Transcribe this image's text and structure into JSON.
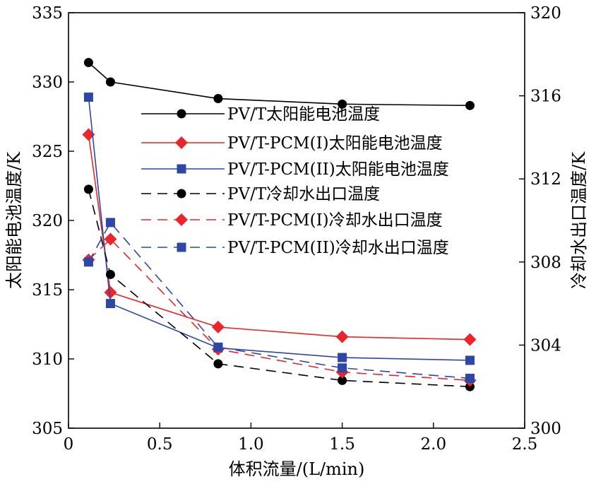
{
  "chart_data": {
    "type": "line",
    "xlabel": "体积流量/(L/min)",
    "ylabel_left": "太阳能电池温度/K",
    "ylabel_right": "冷却水出口温度/K",
    "xlim": [
      0,
      2.5
    ],
    "ylim_left": [
      305,
      335
    ],
    "ylim_right": [
      300,
      320
    ],
    "x_ticks": [
      "0",
      "0.5",
      "1.0",
      "1.5",
      "2.0",
      "2.5"
    ],
    "y_left_ticks": [
      "305",
      "310",
      "315",
      "320",
      "325",
      "330",
      "335"
    ],
    "y_right_ticks": [
      "300",
      "304",
      "308",
      "312",
      "316",
      "320"
    ],
    "grid": false,
    "legend_position": "top-right",
    "x": [
      0.11,
      0.23,
      0.82,
      1.5,
      2.2
    ],
    "series": [
      {
        "name": "PV/T太阳能电池温度",
        "axis": "left",
        "color": "#000000",
        "dash": "solid",
        "marker": "circle",
        "values": [
          331.4,
          330.0,
          328.8,
          328.4,
          328.3
        ]
      },
      {
        "name": "PV/T-PCM(I)太阳能电池温度",
        "axis": "left",
        "color": "#e8262b",
        "dash": "solid",
        "marker": "diamond",
        "values": [
          326.2,
          314.8,
          312.3,
          311.6,
          311.4
        ]
      },
      {
        "name": "PV/T-PCM(II)太阳能电池温度",
        "axis": "left",
        "color": "#2e47a5",
        "dash": "solid",
        "marker": "square",
        "values": [
          328.9,
          314.0,
          310.8,
          310.1,
          309.9
        ]
      },
      {
        "name": "PV/T冷却水出口温度",
        "axis": "right",
        "color": "#000000",
        "dash": "dashed",
        "marker": "circle",
        "values": [
          311.5,
          307.4,
          303.1,
          302.3,
          302.0
        ]
      },
      {
        "name": "PV/T-PCM(I)冷却水出口温度",
        "axis": "right",
        "color": "#e8262b",
        "dash": "dashed",
        "marker": "diamond",
        "values": [
          308.1,
          309.1,
          303.8,
          302.7,
          302.3
        ]
      },
      {
        "name": "PV/T-PCM(II)冷却水出口温度",
        "axis": "right",
        "color": "#2e47a5",
        "dash": "dashed",
        "marker": "square",
        "values": [
          308.0,
          309.9,
          303.9,
          302.9,
          302.4
        ]
      }
    ]
  }
}
